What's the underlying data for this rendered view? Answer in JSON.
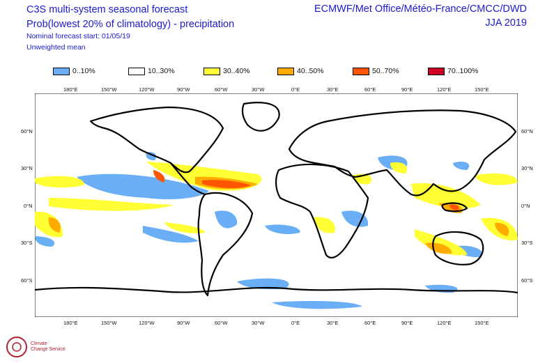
{
  "header": {
    "title_line1": "C3S multi-system seasonal forecast",
    "title_line2": "Prob(lowest 20% of climatology) - precipitation",
    "forecast_start": "Nominal forecast start: 01/05/19",
    "mean_type": "Unweighted mean",
    "centres": "ECMWF/Met Office/Météo-France/CMCC/DWD",
    "season": "JJA 2019"
  },
  "legend": [
    {
      "label": "0..10%",
      "color": "#6aaef5"
    },
    {
      "label": "10..30%",
      "color": "#ffffff"
    },
    {
      "label": "30..40%",
      "color": "#ffff33"
    },
    {
      "label": "40..50%",
      "color": "#ffab00"
    },
    {
      "label": "50..70%",
      "color": "#ff5500"
    },
    {
      "label": "70..100%",
      "color": "#cc0022"
    }
  ],
  "map": {
    "lon_ticks": [
      "180°E",
      "150°W",
      "120°W",
      "90°W",
      "60°W",
      "30°W",
      "0°E",
      "30°E",
      "60°E",
      "90°E",
      "120°E",
      "150°E"
    ],
    "lat_ticks_left": [
      "60°N",
      "30°N",
      "0°N",
      "30°S",
      "60°S"
    ],
    "lat_ticks_right": [
      "60°N",
      "30°N",
      "0°N",
      "30°S",
      "60°S"
    ],
    "coast_color": "#000000"
  },
  "logo": {
    "text_line1": "Climate",
    "text_line2": "Change Service",
    "color": "#b02030"
  }
}
